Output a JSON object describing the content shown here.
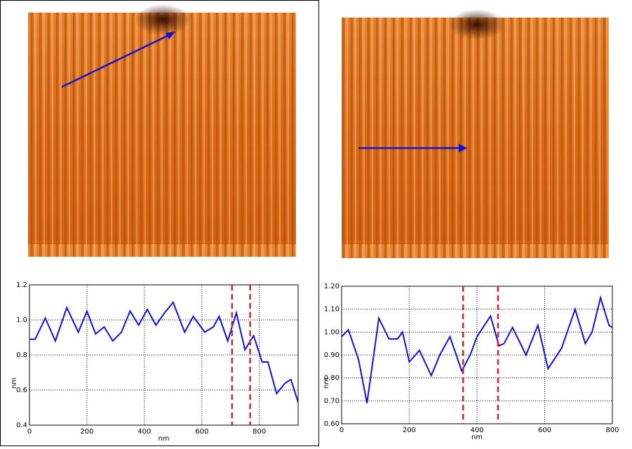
{
  "chart_data": [
    {
      "type": "line",
      "xlabel": "nm",
      "ylabel": "nm",
      "x": [
        0,
        20,
        55,
        90,
        130,
        170,
        200,
        230,
        260,
        290,
        320,
        350,
        380,
        410,
        440,
        470,
        500,
        540,
        570,
        610,
        640,
        660,
        690,
        720,
        750,
        780,
        810,
        830,
        860,
        890,
        910,
        935
      ],
      "series": [
        {
          "color": "#1010e0",
          "values": [
            0.89,
            0.89,
            1.01,
            0.88,
            1.07,
            0.93,
            1.05,
            0.92,
            0.96,
            0.88,
            0.93,
            1.05,
            0.97,
            1.06,
            0.97,
            1.04,
            1.1,
            0.93,
            1.02,
            0.93,
            0.96,
            1.02,
            0.88,
            1.04,
            0.83,
            0.91,
            0.76,
            0.76,
            0.58,
            0.64,
            0.66,
            0.53
          ]
        }
      ],
      "xlim": [
        0,
        935
      ],
      "ylim": [
        0.4,
        1.2
      ],
      "xticks": [
        0,
        200,
        400,
        600,
        800
      ],
      "yticks": [
        0.4,
        0.6,
        0.8,
        {
          "value": 1.0,
          "label": "1.0"
        },
        1.2
      ],
      "grid": true,
      "markers": [
        705,
        768
      ],
      "marker_color": "#e02020"
    },
    {
      "type": "line",
      "xlabel": "nm",
      "ylabel": "nm",
      "x": [
        0,
        20,
        50,
        75,
        110,
        140,
        165,
        180,
        200,
        230,
        265,
        290,
        320,
        355,
        380,
        400,
        440,
        465,
        480,
        505,
        545,
        580,
        610,
        650,
        690,
        720,
        740,
        765,
        790,
        800
      ],
      "series": [
        {
          "color": "#1010e0",
          "values": [
            0.98,
            1.01,
            0.88,
            0.69,
            1.06,
            0.97,
            0.97,
            1.0,
            0.87,
            0.92,
            0.81,
            0.9,
            0.98,
            0.83,
            0.9,
            0.98,
            1.07,
            0.94,
            0.95,
            1.02,
            0.9,
            1.03,
            0.84,
            0.93,
            1.1,
            0.95,
            1.0,
            1.15,
            1.03,
            1.02
          ]
        }
      ],
      "xlim": [
        0,
        800
      ],
      "ylim": [
        0.6,
        1.2
      ],
      "xticks": [
        0,
        200,
        400,
        600,
        800
      ],
      "yticks": [
        {
          "value": 0.6,
          "label": "0.60"
        },
        {
          "value": 0.7,
          "label": "0.70"
        },
        {
          "value": 0.8,
          "label": "0.80"
        },
        {
          "value": 0.9,
          "label": "0.90"
        },
        {
          "value": 1.0,
          "label": "1.00"
        },
        {
          "value": 1.1,
          "label": "1.10"
        },
        {
          "value": 1.2,
          "label": "1.20"
        }
      ],
      "grid": true,
      "markers": [
        359,
        462
      ],
      "marker_color": "#e02020"
    }
  ]
}
